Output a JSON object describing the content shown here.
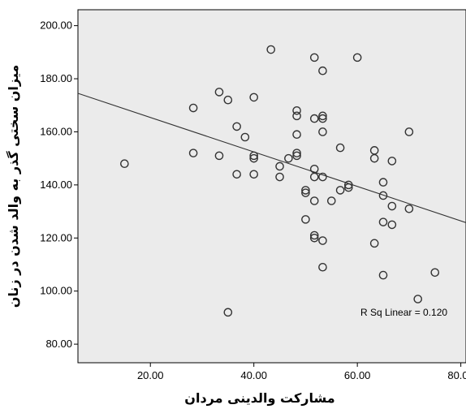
{
  "chart_data": {
    "type": "scatter",
    "title": "",
    "xlabel": "مشارکت والدینی مردان",
    "ylabel": "میزان سختی گذر به والد شدن در زنان",
    "xlim": [
      6,
      81
    ],
    "ylim": [
      73,
      206
    ],
    "x_ticks": [
      "20.00",
      "40.00",
      "60.00",
      "80.00"
    ],
    "x_tick_values": [
      20,
      40,
      60,
      80
    ],
    "y_ticks": [
      "80.00",
      "100.00",
      "120.00",
      "140.00",
      "160.00",
      "180.00",
      "200.00"
    ],
    "y_tick_values": [
      80,
      100,
      120,
      140,
      160,
      180,
      200
    ],
    "grid": false,
    "background_color": "#ebebeb",
    "marker": "hollow-circle",
    "marker_color": "#333333",
    "fit_line": {
      "x": [
        6,
        81
      ],
      "y": [
        174.5,
        125.8
      ]
    },
    "annotation": "R Sq Linear = 0.120",
    "points": [
      {
        "x": 15.0,
        "y": 148
      },
      {
        "x": 28.3,
        "y": 169
      },
      {
        "x": 28.3,
        "y": 152
      },
      {
        "x": 33.3,
        "y": 175
      },
      {
        "x": 33.3,
        "y": 151
      },
      {
        "x": 35.0,
        "y": 172
      },
      {
        "x": 35.0,
        "y": 92
      },
      {
        "x": 36.7,
        "y": 162
      },
      {
        "x": 36.7,
        "y": 144
      },
      {
        "x": 38.3,
        "y": 158
      },
      {
        "x": 40.0,
        "y": 173
      },
      {
        "x": 40.0,
        "y": 151
      },
      {
        "x": 40.0,
        "y": 150
      },
      {
        "x": 40.0,
        "y": 144
      },
      {
        "x": 43.3,
        "y": 191
      },
      {
        "x": 45.0,
        "y": 147
      },
      {
        "x": 45.0,
        "y": 143
      },
      {
        "x": 46.7,
        "y": 150
      },
      {
        "x": 48.3,
        "y": 168
      },
      {
        "x": 48.3,
        "y": 166
      },
      {
        "x": 48.3,
        "y": 159
      },
      {
        "x": 48.3,
        "y": 152
      },
      {
        "x": 48.3,
        "y": 151
      },
      {
        "x": 50.0,
        "y": 138
      },
      {
        "x": 50.0,
        "y": 137
      },
      {
        "x": 50.0,
        "y": 127
      },
      {
        "x": 51.7,
        "y": 188
      },
      {
        "x": 51.7,
        "y": 165
      },
      {
        "x": 51.7,
        "y": 146
      },
      {
        "x": 51.7,
        "y": 143
      },
      {
        "x": 51.7,
        "y": 134
      },
      {
        "x": 51.7,
        "y": 121
      },
      {
        "x": 51.7,
        "y": 120
      },
      {
        "x": 53.3,
        "y": 183
      },
      {
        "x": 53.3,
        "y": 166
      },
      {
        "x": 53.3,
        "y": 165
      },
      {
        "x": 53.3,
        "y": 160
      },
      {
        "x": 53.3,
        "y": 143
      },
      {
        "x": 53.3,
        "y": 119
      },
      {
        "x": 53.3,
        "y": 109
      },
      {
        "x": 55.0,
        "y": 134
      },
      {
        "x": 56.7,
        "y": 154
      },
      {
        "x": 56.7,
        "y": 138
      },
      {
        "x": 58.3,
        "y": 140
      },
      {
        "x": 58.3,
        "y": 139
      },
      {
        "x": 60.0,
        "y": 188
      },
      {
        "x": 63.3,
        "y": 153
      },
      {
        "x": 63.3,
        "y": 150
      },
      {
        "x": 63.3,
        "y": 118
      },
      {
        "x": 65.0,
        "y": 141
      },
      {
        "x": 65.0,
        "y": 136
      },
      {
        "x": 65.0,
        "y": 126
      },
      {
        "x": 65.0,
        "y": 106
      },
      {
        "x": 66.7,
        "y": 149
      },
      {
        "x": 66.7,
        "y": 132
      },
      {
        "x": 66.7,
        "y": 125
      },
      {
        "x": 70.0,
        "y": 160
      },
      {
        "x": 70.0,
        "y": 131
      },
      {
        "x": 71.7,
        "y": 97
      },
      {
        "x": 75.0,
        "y": 107
      }
    ]
  }
}
